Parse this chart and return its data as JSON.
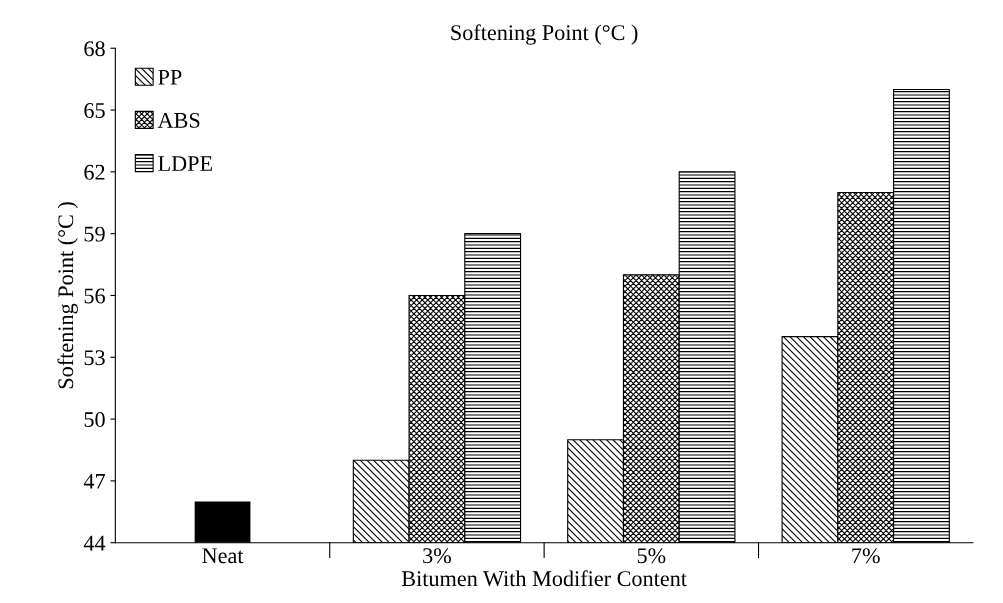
{
  "chart_data": {
    "type": "bar",
    "title": "Softening Point (°C )",
    "xlabel": "Bitumen With Modifier Content",
    "ylabel": "Softening Point (°C )",
    "categories": [
      "Neat",
      "3%",
      "5%",
      "7%"
    ],
    "series": [
      {
        "name": "PP",
        "color": "#000000",
        "values": [
          null,
          48,
          49,
          54
        ]
      },
      {
        "name": "ABS",
        "color": "#000000",
        "values": [
          null,
          56,
          57,
          61
        ]
      },
      {
        "name": "LDPE",
        "color": "#000000",
        "values": [
          null,
          59,
          62,
          66
        ]
      },
      {
        "color": "#000000",
        "values": [
          46,
          null,
          null,
          null
        ]
      }
    ],
    "ylim": [
      44,
      68
    ],
    "yticks": [
      44,
      47,
      50,
      53,
      56,
      59,
      62,
      65,
      68
    ],
    "grid": false,
    "legend": "top left"
  }
}
